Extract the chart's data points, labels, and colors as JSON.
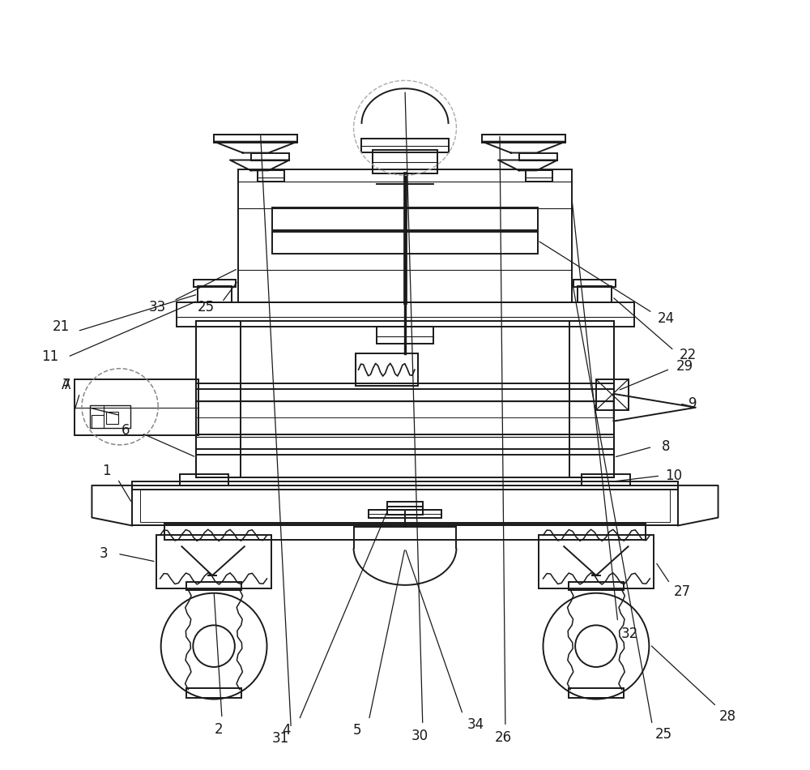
{
  "bg_color": "#ffffff",
  "lc": "#1a1a1a",
  "lw": 1.4,
  "fig_w": 10.0,
  "fig_h": 9.5
}
